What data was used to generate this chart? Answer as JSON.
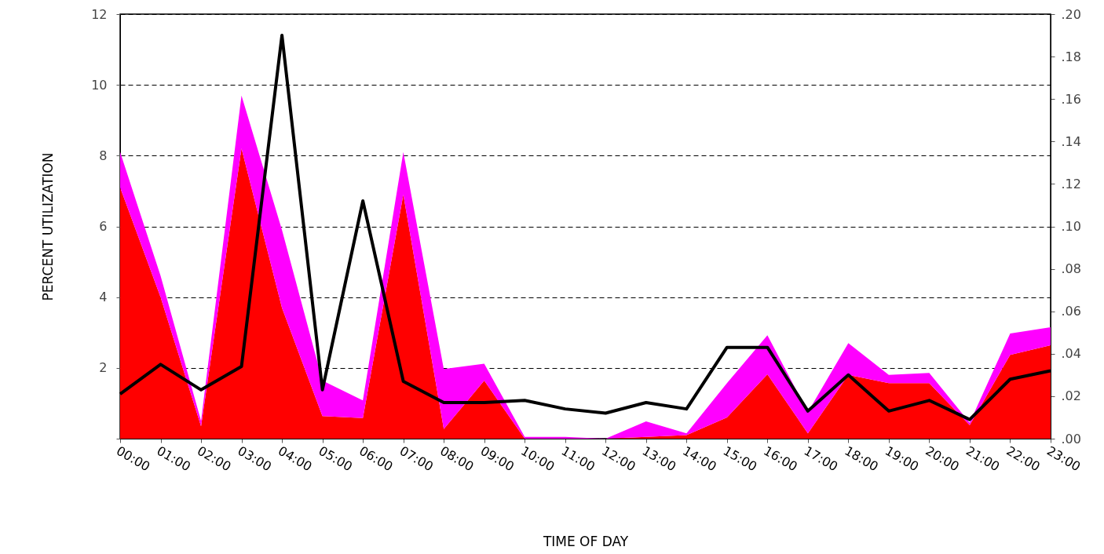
{
  "chart_data": {
    "type": "area",
    "stacked": true,
    "xlabel": "TIME OF DAY",
    "ylabel": "PERCENT UTILIZATION",
    "categories": [
      "00:00",
      "01:00",
      "02:00",
      "03:00",
      "04:00",
      "05:00",
      "06:00",
      "07:00",
      "08:00",
      "09:00",
      "10:00",
      "11:00",
      "12:00",
      "13:00",
      "14:00",
      "15:00",
      "16:00",
      "17:00",
      "18:00",
      "19:00",
      "20:00",
      "21:00",
      "22:00",
      "23:00"
    ],
    "series": [
      {
        "color": "#ff0000",
        "values": [
          7.1,
          4.0,
          0.35,
          8.2,
          3.7,
          0.64,
          0.58,
          6.9,
          0.27,
          1.64,
          0,
          0,
          0,
          0.05,
          0.1,
          0.6,
          1.82,
          0.15,
          1.8,
          1.57,
          1.57,
          0.38,
          2.37,
          2.64
        ]
      },
      {
        "color": "#ff00ff",
        "values": [
          1.0,
          0.6,
          0.15,
          1.5,
          2.2,
          1.0,
          0.5,
          1.2,
          1.7,
          0.48,
          0.05,
          0.05,
          0,
          0.44,
          0.05,
          0.97,
          1.1,
          0.6,
          0.9,
          0.23,
          0.29,
          0.07,
          0.6,
          0.51
        ]
      },
      {
        "type": "line",
        "axis": "y2",
        "color": "#000000",
        "values": [
          0.021,
          0.035,
          0.023,
          0.034,
          0.19,
          0.023,
          0.112,
          0.027,
          0.017,
          0.017,
          0.018,
          0.014,
          0.012,
          0.017,
          0.014,
          0.043,
          0.043,
          0.013,
          0.03,
          0.013,
          0.018,
          0.009,
          0.028,
          0.032
        ]
      }
    ],
    "ylim": [
      0,
      12
    ],
    "yticks": [
      {
        "value": 0,
        "label": null
      },
      2,
      4,
      6,
      8,
      10,
      12
    ],
    "y2lim": [
      0,
      0.2
    ],
    "y2ticks": [
      {
        "value": 0,
        "label": ".00"
      },
      {
        "value": 0.02,
        "label": ".02"
      },
      {
        "value": 0.04,
        "label": ".04"
      },
      {
        "value": 0.06,
        "label": ".06"
      },
      {
        "value": 0.08,
        "label": ".08"
      },
      {
        "value": 0.1,
        "label": ".10"
      },
      {
        "value": 0.12,
        "label": ".12"
      },
      {
        "value": 0.14,
        "label": ".14"
      },
      {
        "value": 0.16,
        "label": ".16"
      },
      {
        "value": 0.18,
        "label": ".18"
      },
      {
        "value": 0.2,
        "label": ".20"
      }
    ],
    "grid": "y",
    "line_style": "solid",
    "marker": "none"
  }
}
